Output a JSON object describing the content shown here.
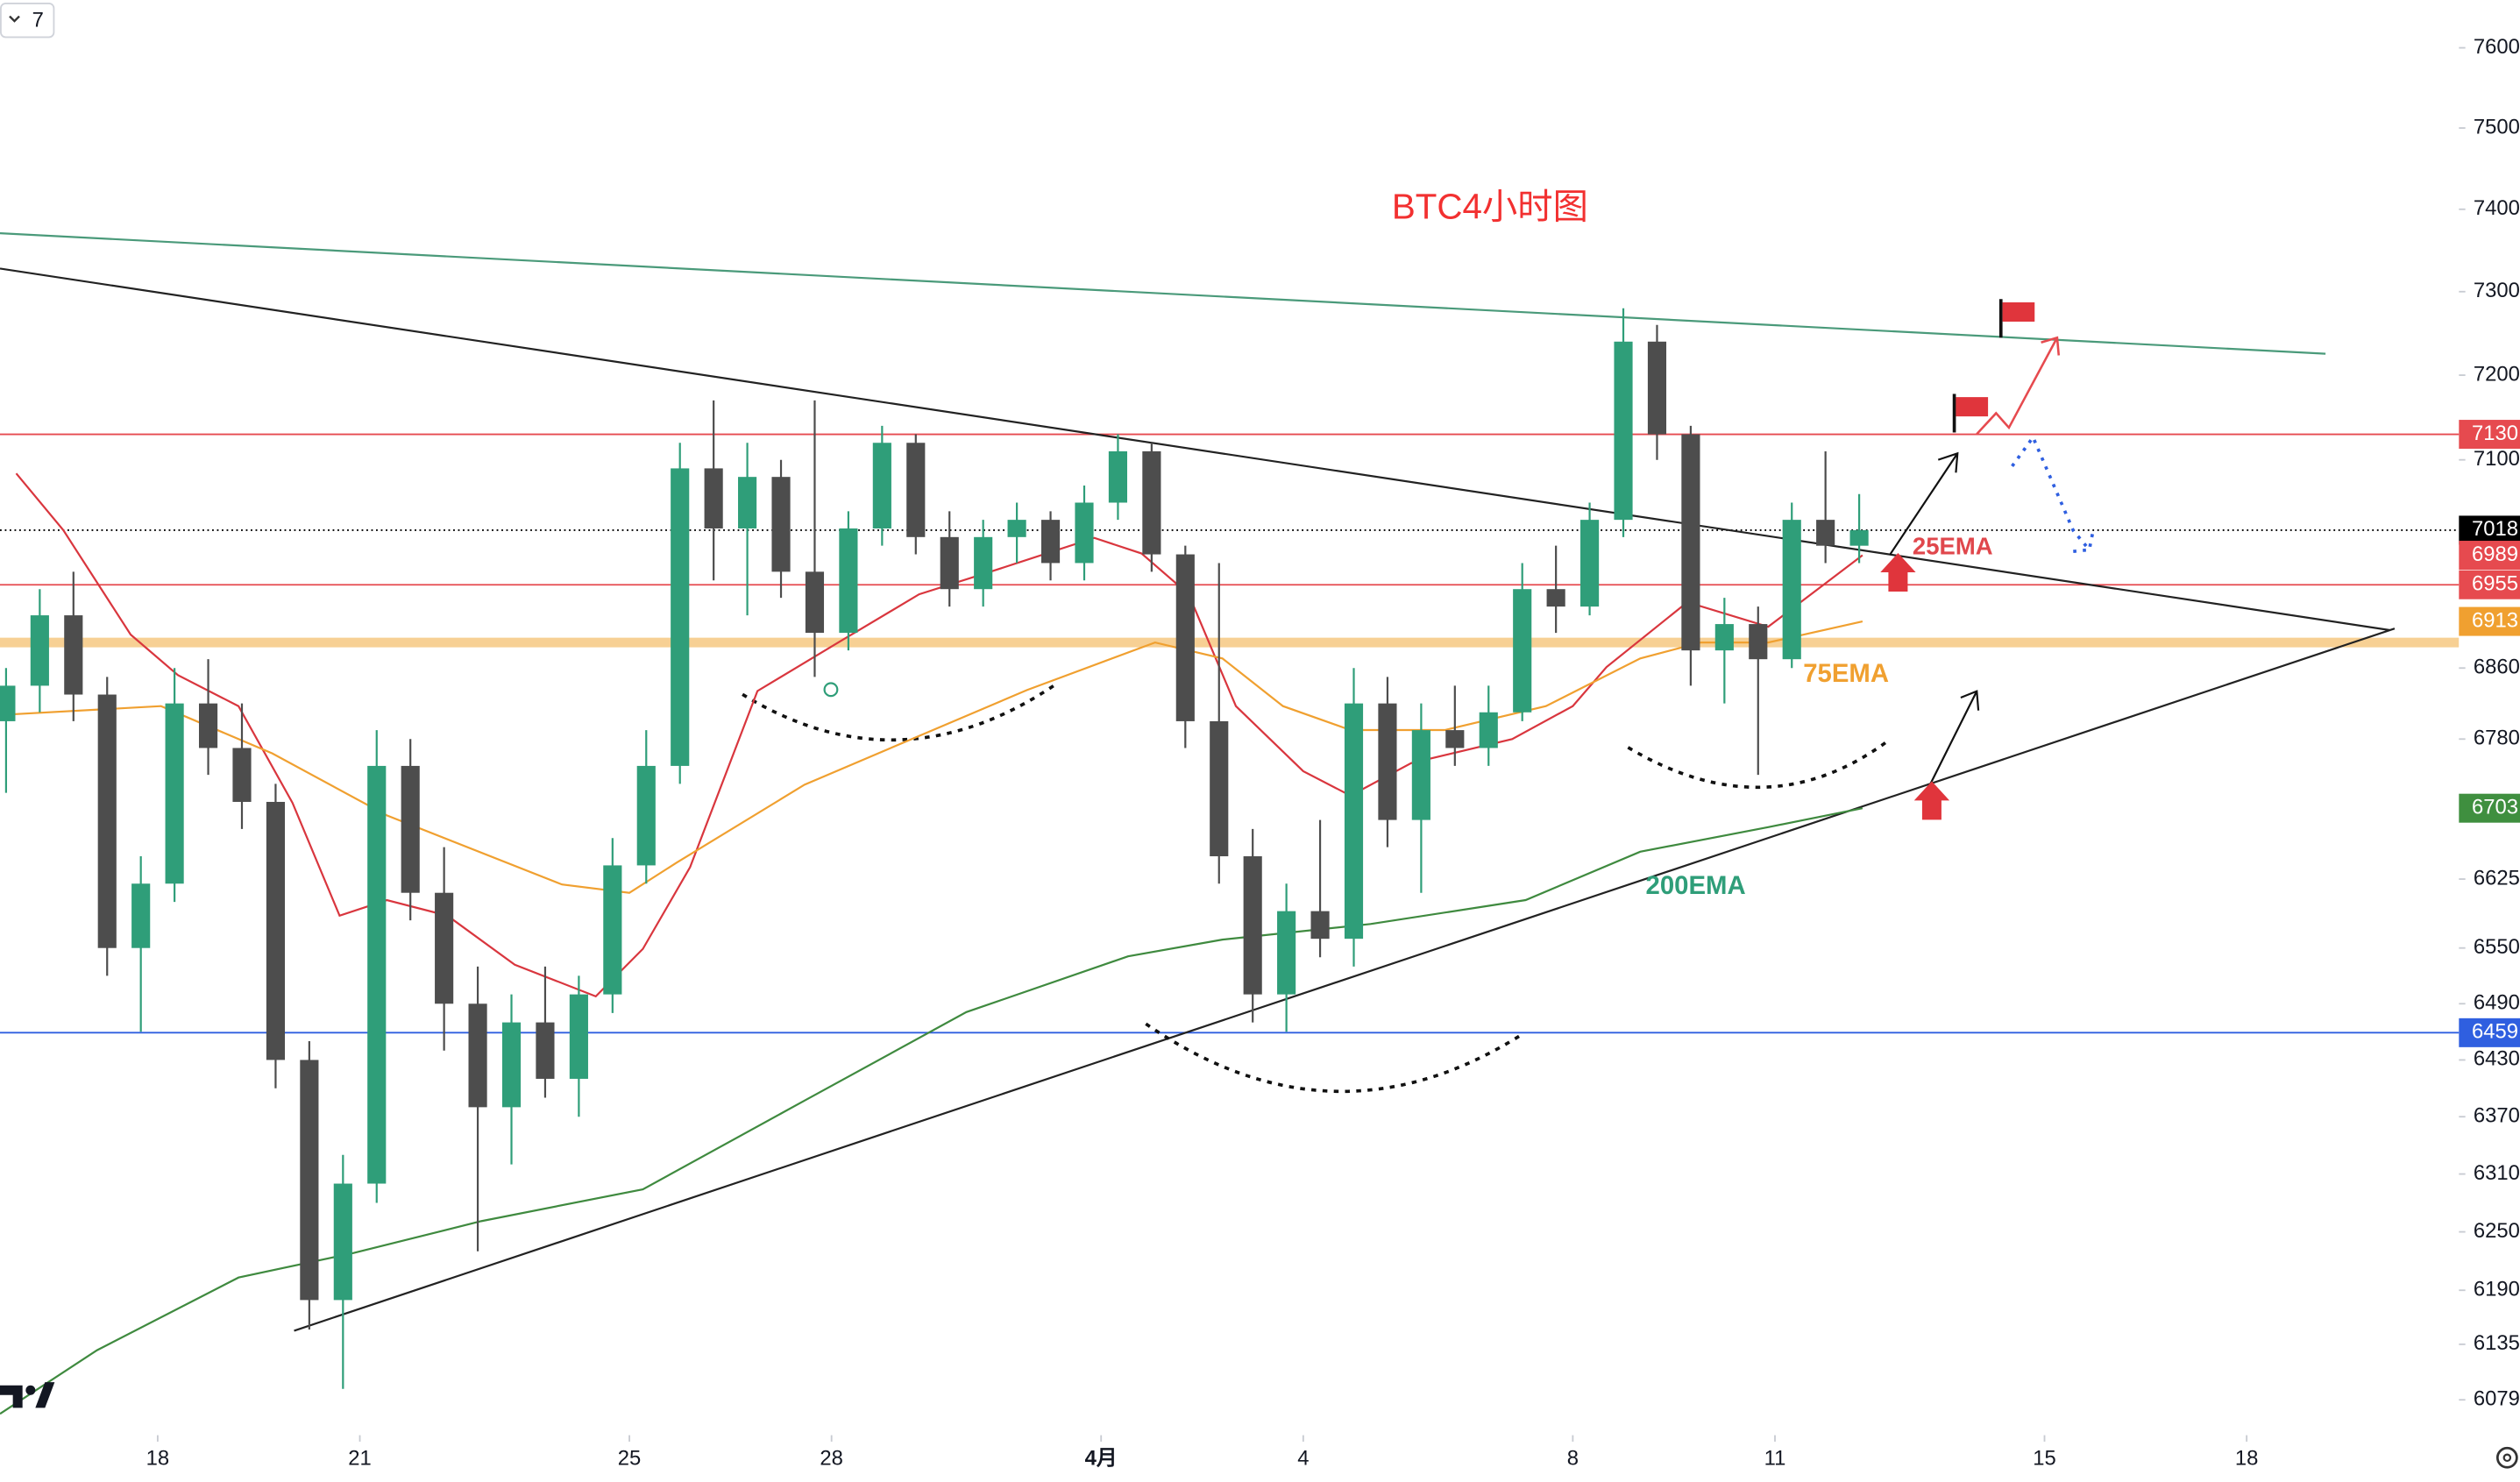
{
  "ui": {
    "interval_badge": "7"
  },
  "chart_data": {
    "type": "candlestick",
    "log_scale": true,
    "xlim": [
      15.66,
      52.15
    ],
    "ylim": [
      60500,
      76600
    ],
    "xticks": [
      18,
      21,
      25,
      28,
      {
        "value": 32,
        "label": "4月"
      },
      {
        "value": 35,
        "label": "4"
      },
      {
        "value": 39,
        "label": "8"
      },
      {
        "value": 42,
        "label": "11"
      },
      {
        "value": 46,
        "label": "15"
      },
      {
        "value": 49,
        "label": "18"
      }
    ],
    "yticks": [
      {
        "value": 76000,
        "label": "7600"
      },
      {
        "value": 75000,
        "label": "7500"
      },
      {
        "value": 74000,
        "label": "7400"
      },
      {
        "value": 73000,
        "label": "7300"
      },
      {
        "value": 72000,
        "label": "7200"
      },
      {
        "value": 71000,
        "label": "7100"
      },
      {
        "value": 68600,
        "label": "6860"
      },
      {
        "value": 67800,
        "label": "6780"
      },
      {
        "value": 66250,
        "label": "6625"
      },
      {
        "value": 65500,
        "label": "6550"
      },
      {
        "value": 64900,
        "label": "6490"
      },
      {
        "value": 64300,
        "label": "6430"
      },
      {
        "value": 63700,
        "label": "6370"
      },
      {
        "value": 63100,
        "label": "6310"
      },
      {
        "value": 62500,
        "label": "6250"
      },
      {
        "value": 61900,
        "label": "6190"
      },
      {
        "value": 61350,
        "label": "6135"
      },
      {
        "value": 60790,
        "label": "6079"
      }
    ],
    "up_color": "#2f9e79",
    "down_color": "#4d4d4d",
    "candles": {
      "x": [
        15.75,
        16.25,
        16.75,
        17.25,
        17.75,
        18.25,
        18.75,
        19.25,
        19.75,
        20.25,
        20.75,
        21.25,
        21.75,
        22.25,
        22.75,
        23.25,
        23.75,
        24.25,
        24.75,
        25.25,
        25.75,
        26.25,
        26.75,
        27.25,
        27.75,
        28.25,
        28.75,
        29.25,
        29.75,
        30.25,
        30.75,
        31.25,
        31.75,
        32.25,
        32.75,
        33.25,
        33.75,
        34.25,
        34.75,
        35.25,
        35.75,
        36.25,
        36.75,
        37.25,
        37.75,
        38.25,
        38.75,
        39.25,
        39.75,
        40.25,
        40.75,
        41.25,
        41.75,
        42.25,
        42.75,
        43.25
      ],
      "open": [
        68000,
        68400,
        69200,
        68300,
        65500,
        66200,
        68200,
        67700,
        67100,
        64300,
        61800,
        63000,
        67500,
        66100,
        64900,
        63800,
        64700,
        64100,
        65000,
        66400,
        67500,
        70900,
        70200,
        70800,
        69700,
        69000,
        70200,
        71200,
        70100,
        69500,
        70100,
        70300,
        69800,
        70500,
        71100,
        69900,
        68000,
        66500,
        65000,
        65900,
        65600,
        68200,
        66900,
        67900,
        67700,
        68100,
        69500,
        69300,
        70300,
        72400,
        71300,
        68800,
        69100,
        68700,
        70300,
        70000
      ],
      "high": [
        68600,
        69500,
        69700,
        68500,
        66500,
        68600,
        68700,
        68200,
        67300,
        64500,
        63300,
        67900,
        67800,
        66600,
        65300,
        65000,
        65300,
        65200,
        66700,
        67900,
        71200,
        71700,
        71200,
        71000,
        71700,
        70400,
        71400,
        71300,
        70400,
        70300,
        70500,
        70400,
        70700,
        71300,
        71200,
        70000,
        69800,
        66800,
        66200,
        66900,
        68600,
        68500,
        68200,
        68400,
        68400,
        69800,
        70000,
        70500,
        72800,
        72600,
        71400,
        69400,
        69300,
        70500,
        71100,
        70600
      ],
      "low": [
        67200,
        68100,
        68000,
        65200,
        64600,
        66000,
        67400,
        66800,
        64000,
        61500,
        60900,
        62800,
        65800,
        64400,
        62300,
        63200,
        63900,
        63700,
        64800,
        66200,
        67300,
        69600,
        69200,
        69400,
        68500,
        68800,
        70000,
        69900,
        69300,
        69300,
        69800,
        69600,
        69600,
        70300,
        69700,
        67700,
        66200,
        64700,
        64600,
        65400,
        65300,
        66600,
        66100,
        67500,
        67500,
        68000,
        69000,
        69200,
        70100,
        71000,
        68400,
        68200,
        67400,
        68600,
        69800,
        69800
      ],
      "close": [
        68400,
        69200,
        68300,
        65500,
        66200,
        68200,
        67700,
        67100,
        64300,
        61800,
        63000,
        67500,
        66100,
        64900,
        63800,
        64700,
        64100,
        65000,
        66400,
        67500,
        70900,
        70200,
        70800,
        69700,
        69000,
        70200,
        71200,
        70100,
        69500,
        70100,
        70300,
        69800,
        70500,
        71100,
        69900,
        68000,
        66500,
        65000,
        65900,
        65600,
        68200,
        66900,
        67900,
        67700,
        68100,
        69500,
        69300,
        70300,
        72400,
        71300,
        68800,
        69100,
        68700,
        70300,
        70000,
        70180
      ]
    },
    "emas": [
      {
        "name": "25EMA",
        "color": "#d9363e",
        "x": [
          15.9,
          16.6,
          17.6,
          18.3,
          19.2,
          20.0,
          20.7,
          21.4,
          22.3,
          23.3,
          24.5,
          25.2,
          25.9,
          26.9,
          28.1,
          29.3,
          30.4,
          31.9,
          32.6,
          33.3,
          34.0,
          35.0,
          35.7,
          36.6,
          38.1,
          39.0,
          39.5,
          40.7,
          41.9,
          43.3
        ],
        "values": [
          70840,
          70180,
          68980,
          68520,
          68170,
          67090,
          65850,
          66020,
          65850,
          65320,
          64980,
          65490,
          66380,
          68340,
          68890,
          69440,
          69710,
          70090,
          69910,
          69440,
          68170,
          67440,
          67170,
          67530,
          67800,
          68170,
          68610,
          69350,
          69070,
          69890
        ]
      },
      {
        "name": "75EMA",
        "color": "#f0a030",
        "x": [
          15.66,
          18.05,
          19.7,
          21.4,
          24.0,
          25.0,
          25.7,
          27.6,
          30.9,
          32.8,
          33.8,
          34.7,
          35.7,
          37.1,
          38.6,
          40.0,
          40.9,
          41.9,
          43.3
        ],
        "values": [
          68070,
          68170,
          67640,
          66950,
          66190,
          66100,
          66430,
          67290,
          68350,
          68890,
          68710,
          68170,
          67900,
          67900,
          68170,
          68710,
          68890,
          68890,
          69130
        ]
      },
      {
        "name": "200EMA",
        "color": "#3f8a3f",
        "x": [
          15.66,
          17.1,
          19.2,
          20.9,
          22.8,
          25.2,
          27.6,
          30.0,
          32.4,
          33.8,
          36.0,
          38.3,
          40.0,
          41.9,
          43.3
        ],
        "values": [
          60650,
          61290,
          62030,
          62280,
          62610,
          62940,
          63870,
          64810,
          65410,
          65590,
          65760,
          66020,
          66550,
          66820,
          67030
        ]
      }
    ],
    "levels": [
      {
        "value": 71300,
        "label": "7130",
        "color": "#e64a4f"
      },
      {
        "value": 70180,
        "label": "7018",
        "color": "#000000",
        "dashed": true
      },
      {
        "value": 69550,
        "label": "6955",
        "color": "#e64a4f"
      },
      {
        "value": 68890,
        "color": "#f6c882",
        "thick": true
      },
      {
        "value": 64590,
        "label": "6459",
        "color": "#2f5fe0"
      }
    ],
    "tags": [
      {
        "value": 69890,
        "label": "6989",
        "color": "#e64a4f"
      },
      {
        "value": 69130,
        "label": "6913",
        "color": "#f0a030"
      },
      {
        "value": 67030,
        "label": "6703",
        "color": "#3f8f3f"
      }
    ],
    "annotations": [
      {
        "text": "BTC4小时图",
        "color": "#f23030"
      },
      {
        "text": "25EMA",
        "color": "#e0474c"
      },
      {
        "text": "75EMA",
        "color": "#f0a030"
      },
      {
        "text": "200EMA",
        "color": "#2f9e79"
      }
    ]
  }
}
